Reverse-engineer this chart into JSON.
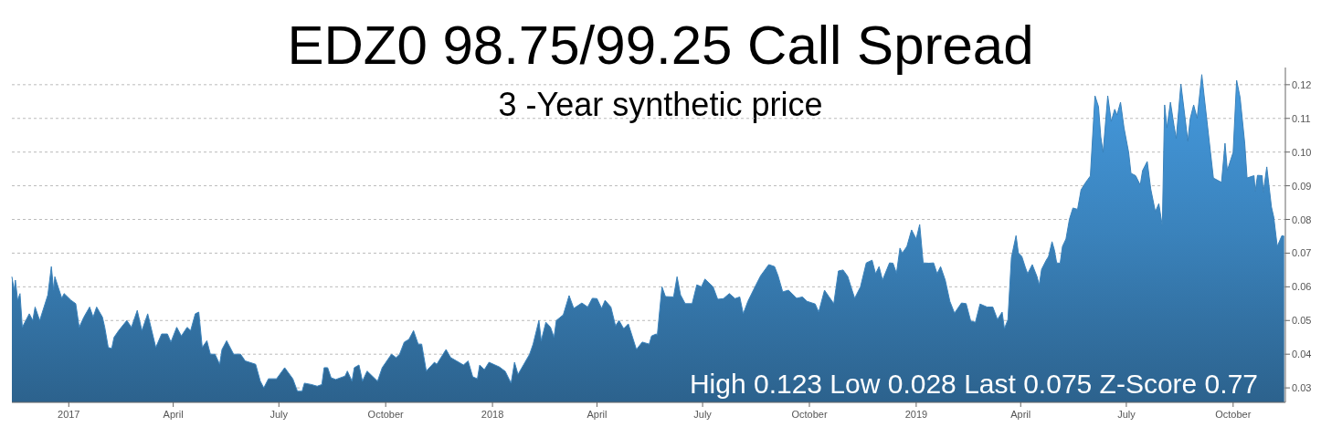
{
  "chart_data": {
    "type": "area",
    "title": "EDZ0 98.75/99.25 Call Spread",
    "subtitle": "3 -Year synthetic price",
    "annotations": [
      "High 0.123 Low 0.028 Last 0.075 Z-Score 0.77"
    ],
    "xlim": [
      "2016-11-13",
      "2019-11-15"
    ],
    "xticks": [
      {
        "value": "2017-01-01",
        "label": "2017"
      },
      {
        "value": "2017-04-01",
        "label": "April"
      },
      {
        "value": "2017-07-01",
        "label": "July"
      },
      {
        "value": "2017-10-01",
        "label": "October"
      },
      {
        "value": "2018-01-01",
        "label": "2018"
      },
      {
        "value": "2018-04-01",
        "label": "April"
      },
      {
        "value": "2018-07-01",
        "label": "July"
      },
      {
        "value": "2018-10-01",
        "label": "October"
      },
      {
        "value": "2019-01-01",
        "label": "2019"
      },
      {
        "value": "2019-04-01",
        "label": "April"
      },
      {
        "value": "2019-07-01",
        "label": "July"
      },
      {
        "value": "2019-10-01",
        "label": "October"
      }
    ],
    "ylim": [
      0.0257,
      0.1251
    ],
    "yticks": [
      0.03,
      0.04,
      0.05,
      0.06,
      0.07,
      0.08,
      0.09,
      {
        "value": 0.1,
        "label": "0.10"
      },
      0.11,
      0.12
    ],
    "grid": "y",
    "series": [
      {
        "color": "#3a82bb",
        "x": [
          "2016-11-13",
          "2016-11-15",
          "2016-11-16",
          "2016-11-18",
          "2016-11-20",
          "2016-11-22",
          "2016-11-28",
          "2016-12-01",
          "2016-12-03",
          "2016-12-07",
          "2016-12-14",
          "2016-12-17",
          "2016-12-19",
          "2016-12-20",
          "2016-12-26",
          "2016-12-28",
          "2017-01-03",
          "2017-01-07",
          "2017-01-10",
          "2017-01-14",
          "2017-01-19",
          "2017-01-22",
          "2017-01-25",
          "2017-01-30",
          "2017-02-01",
          "2017-02-04",
          "2017-02-07",
          "2017-02-09",
          "2017-02-13",
          "2017-02-20",
          "2017-02-24",
          "2017-03-01",
          "2017-03-05",
          "2017-03-10",
          "2017-03-17",
          "2017-03-22",
          "2017-03-27",
          "2017-03-30",
          "2017-04-04",
          "2017-04-08",
          "2017-04-13",
          "2017-04-16",
          "2017-04-20",
          "2017-04-23",
          "2017-04-26",
          "2017-04-30",
          "2017-05-03",
          "2017-05-07",
          "2017-05-11",
          "2017-05-13",
          "2017-05-17",
          "2017-05-23",
          "2017-05-29",
          "2017-06-02",
          "2017-06-11",
          "2017-06-15",
          "2017-06-18",
          "2017-06-22",
          "2017-06-29",
          "2017-07-06",
          "2017-07-13",
          "2017-07-17",
          "2017-07-21",
          "2017-07-23",
          "2017-07-29",
          "2017-08-03",
          "2017-08-07",
          "2017-08-09",
          "2017-08-12",
          "2017-08-15",
          "2017-08-19",
          "2017-08-27",
          "2017-08-29",
          "2017-09-02",
          "2017-09-04",
          "2017-09-08",
          "2017-09-11",
          "2017-09-15",
          "2017-09-24",
          "2017-09-28",
          "2017-10-06",
          "2017-10-10",
          "2017-10-13",
          "2017-10-17",
          "2017-10-21",
          "2017-10-25",
          "2017-10-29",
          "2017-11-01",
          "2017-11-05",
          "2017-11-12",
          "2017-11-14",
          "2017-11-22",
          "2017-11-26",
          "2017-12-01",
          "2017-12-07",
          "2017-12-11",
          "2017-12-15",
          "2017-12-19",
          "2017-12-21",
          "2017-12-25",
          "2017-12-29",
          "2018-01-07",
          "2018-01-12",
          "2018-01-17",
          "2018-01-20",
          "2018-01-23",
          "2018-01-28",
          "2018-02-02",
          "2018-02-05",
          "2018-02-10",
          "2018-02-12",
          "2018-02-16",
          "2018-02-20",
          "2018-02-23",
          "2018-02-25",
          "2018-03-03",
          "2018-03-08",
          "2018-03-12",
          "2018-03-19",
          "2018-03-24",
          "2018-03-28",
          "2018-04-01",
          "2018-04-05",
          "2018-04-08",
          "2018-04-13",
          "2018-04-17",
          "2018-04-20",
          "2018-04-24",
          "2018-04-28",
          "2018-05-05",
          "2018-05-10",
          "2018-05-16",
          "2018-05-18",
          "2018-05-22",
          "2018-05-23",
          "2018-05-27",
          "2018-05-30",
          "2018-06-06",
          "2018-06-09",
          "2018-06-12",
          "2018-06-16",
          "2018-06-22",
          "2018-06-26",
          "2018-06-30",
          "2018-07-03",
          "2018-07-10",
          "2018-07-14",
          "2018-07-19",
          "2018-07-24",
          "2018-07-29",
          "2018-08-02",
          "2018-08-05",
          "2018-08-09",
          "2018-08-16",
          "2018-08-20",
          "2018-08-27",
          "2018-09-01",
          "2018-09-04",
          "2018-09-08",
          "2018-09-13",
          "2018-09-20",
          "2018-09-25",
          "2018-09-29",
          "2018-10-06",
          "2018-10-09",
          "2018-10-14",
          "2018-10-18",
          "2018-10-22",
          "2018-10-26",
          "2018-10-30",
          "2018-11-03",
          "2018-11-09",
          "2018-11-14",
          "2018-11-19",
          "2018-11-24",
          "2018-11-27",
          "2018-11-30",
          "2018-12-03",
          "2018-12-09",
          "2018-12-12",
          "2018-12-15",
          "2018-12-18",
          "2018-12-20",
          "2018-12-24",
          "2018-12-28",
          "2019-01-01",
          "2019-01-04",
          "2019-01-07",
          "2019-01-12",
          "2019-01-16",
          "2019-01-19",
          "2019-01-22",
          "2019-01-26",
          "2019-01-30",
          "2019-02-03",
          "2019-02-09",
          "2019-02-13",
          "2019-02-17",
          "2019-02-21",
          "2019-02-25",
          "2019-03-03",
          "2019-03-08",
          "2019-03-12",
          "2019-03-16",
          "2019-03-18",
          "2019-03-21",
          "2019-03-24",
          "2019-03-28",
          "2019-03-30",
          "2019-04-02",
          "2019-04-05",
          "2019-04-07",
          "2019-04-11",
          "2019-04-15",
          "2019-04-17",
          "2019-04-19",
          "2019-04-23",
          "2019-04-25",
          "2019-04-28",
          "2019-04-30",
          "2019-05-02",
          "2019-05-05",
          "2019-05-07",
          "2019-05-10",
          "2019-05-13",
          "2019-05-16",
          "2019-05-20",
          "2019-05-23",
          "2019-05-27",
          "2019-05-31",
          "2019-06-04",
          "2019-06-07",
          "2019-06-09",
          "2019-06-11",
          "2019-06-15",
          "2019-06-18",
          "2019-06-21",
          "2019-06-23",
          "2019-06-26",
          "2019-06-29",
          "2019-07-03",
          "2019-07-05",
          "2019-07-09",
          "2019-07-13",
          "2019-07-15",
          "2019-07-19",
          "2019-07-22",
          "2019-07-26",
          "2019-07-29",
          "2019-08-01",
          "2019-08-03",
          "2019-08-05",
          "2019-08-08",
          "2019-08-11",
          "2019-08-13",
          "2019-08-17",
          "2019-08-20",
          "2019-08-23",
          "2019-08-25",
          "2019-08-28",
          "2019-08-31",
          "2019-09-04",
          "2019-09-06",
          "2019-09-10",
          "2019-09-14",
          "2019-09-21",
          "2019-09-24",
          "2019-09-26",
          "2019-09-29",
          "2019-10-01",
          "2019-10-04",
          "2019-10-07",
          "2019-10-11",
          "2019-10-13",
          "2019-10-19",
          "2019-10-20",
          "2019-10-22",
          "2019-10-26",
          "2019-10-27",
          "2019-10-30",
          "2019-11-03",
          "2019-11-05",
          "2019-11-08",
          "2019-11-12",
          "2019-11-14"
        ],
        "values": [
          0.063,
          0.059,
          0.062,
          0.056,
          0.058,
          0.048,
          0.052,
          0.05,
          0.054,
          0.05,
          0.0576,
          0.066,
          0.059,
          0.063,
          0.0566,
          0.058,
          0.056,
          0.055,
          0.048,
          0.051,
          0.054,
          0.051,
          0.054,
          0.051,
          0.048,
          0.042,
          0.0417,
          0.045,
          0.047,
          0.05,
          0.048,
          0.053,
          0.047,
          0.052,
          0.042,
          0.046,
          0.046,
          0.0436,
          0.048,
          0.0454,
          0.048,
          0.047,
          0.052,
          0.0525,
          0.042,
          0.044,
          0.04,
          0.04,
          0.037,
          0.0414,
          0.044,
          0.04,
          0.04,
          0.038,
          0.037,
          0.032,
          0.03,
          0.0327,
          0.0327,
          0.036,
          0.0327,
          0.029,
          0.029,
          0.0314,
          0.031,
          0.0305,
          0.031,
          0.036,
          0.036,
          0.033,
          0.0325,
          0.0335,
          0.035,
          0.032,
          0.036,
          0.0368,
          0.032,
          0.035,
          0.032,
          0.036,
          0.04,
          0.039,
          0.04,
          0.0436,
          0.0444,
          0.047,
          0.043,
          0.043,
          0.035,
          0.0376,
          0.037,
          0.0414,
          0.039,
          0.038,
          0.0368,
          0.038,
          0.0333,
          0.0327,
          0.0368,
          0.0354,
          0.0376,
          0.0362,
          0.0349,
          0.0314,
          0.0376,
          0.034,
          0.037,
          0.04,
          0.043,
          0.05,
          0.044,
          0.0495,
          0.048,
          0.045,
          0.05,
          0.0517,
          0.0574,
          0.0536,
          0.0552,
          0.054,
          0.0566,
          0.0565,
          0.0536,
          0.056,
          0.054,
          0.0484,
          0.05,
          0.0476,
          0.049,
          0.0414,
          0.0436,
          0.043,
          0.0454,
          0.046,
          0.0457,
          0.06,
          0.0571,
          0.057,
          0.063,
          0.0576,
          0.055,
          0.055,
          0.0606,
          0.06,
          0.0623,
          0.06,
          0.0563,
          0.0565,
          0.058,
          0.0565,
          0.057,
          0.052,
          0.0557,
          0.0606,
          0.0633,
          0.0666,
          0.066,
          0.0633,
          0.0585,
          0.059,
          0.0566,
          0.057,
          0.0557,
          0.0549,
          0.0525,
          0.059,
          0.057,
          0.055,
          0.0647,
          0.065,
          0.0631,
          0.0566,
          0.06,
          0.0671,
          0.0679,
          0.0639,
          0.066,
          0.062,
          0.0671,
          0.067,
          0.064,
          0.0715,
          0.07,
          0.072,
          0.0769,
          0.0742,
          0.0785,
          0.0671,
          0.067,
          0.0671,
          0.0639,
          0.066,
          0.062,
          0.0557,
          0.0522,
          0.0552,
          0.055,
          0.0498,
          0.0495,
          0.0549,
          0.054,
          0.054,
          0.0503,
          0.0525,
          0.0476,
          0.0503,
          0.0687,
          0.0752,
          0.0701,
          0.069,
          0.0658,
          0.0639,
          0.0666,
          0.0631,
          0.0606,
          0.0652,
          0.0679,
          0.069,
          0.0734,
          0.071,
          0.0671,
          0.067,
          0.072,
          0.0742,
          0.0801,
          0.0834,
          0.083,
          0.0888,
          0.091,
          0.0929,
          0.1167,
          0.1135,
          0.1045,
          0.0999,
          0.1167,
          0.1091,
          0.1127,
          0.111,
          0.1148,
          0.1072,
          0.0999,
          0.0937,
          0.093,
          0.0902,
          0.0945,
          0.0972,
          0.0891,
          0.0823,
          0.0847,
          0.078,
          0.114,
          0.1072,
          0.1148,
          0.108,
          0.104,
          0.1202,
          0.1118,
          0.1032,
          0.1099,
          0.114,
          0.11,
          0.123,
          0.1167,
          0.1045,
          0.0923,
          0.091,
          0.1026,
          0.0945,
          0.0978,
          0.0999,
          0.1213,
          0.1162,
          0.1026,
          0.0923,
          0.093,
          0.0883,
          0.0931,
          0.093,
          0.088,
          0.0956,
          0.0837,
          0.0807,
          0.072,
          0.0752,
          0.075
        ]
      }
    ]
  }
}
